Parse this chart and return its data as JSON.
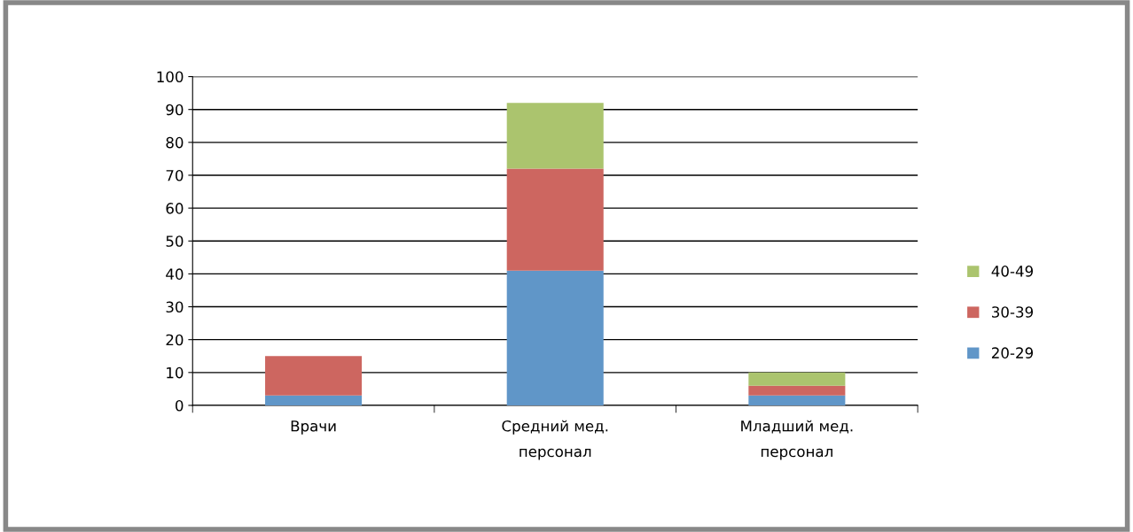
{
  "chart_data": {
    "type": "bar",
    "stacked": true,
    "categories": [
      "Врачи",
      "Средний мед.\nперсонал",
      "Младший мед.\nперсонал"
    ],
    "series": [
      {
        "name": "20-29",
        "color": "#6096c8",
        "values": [
          3,
          41,
          3
        ]
      },
      {
        "name": "30-39",
        "color": "#cd6660",
        "values": [
          12,
          31,
          3
        ]
      },
      {
        "name": "40-49",
        "color": "#abc46e",
        "values": [
          0,
          20,
          4
        ]
      }
    ],
    "ylim": [
      0,
      100
    ],
    "yticks": [
      0,
      10,
      20,
      30,
      40,
      50,
      60,
      70,
      80,
      90,
      100
    ],
    "grid": "y",
    "legend": "right"
  }
}
